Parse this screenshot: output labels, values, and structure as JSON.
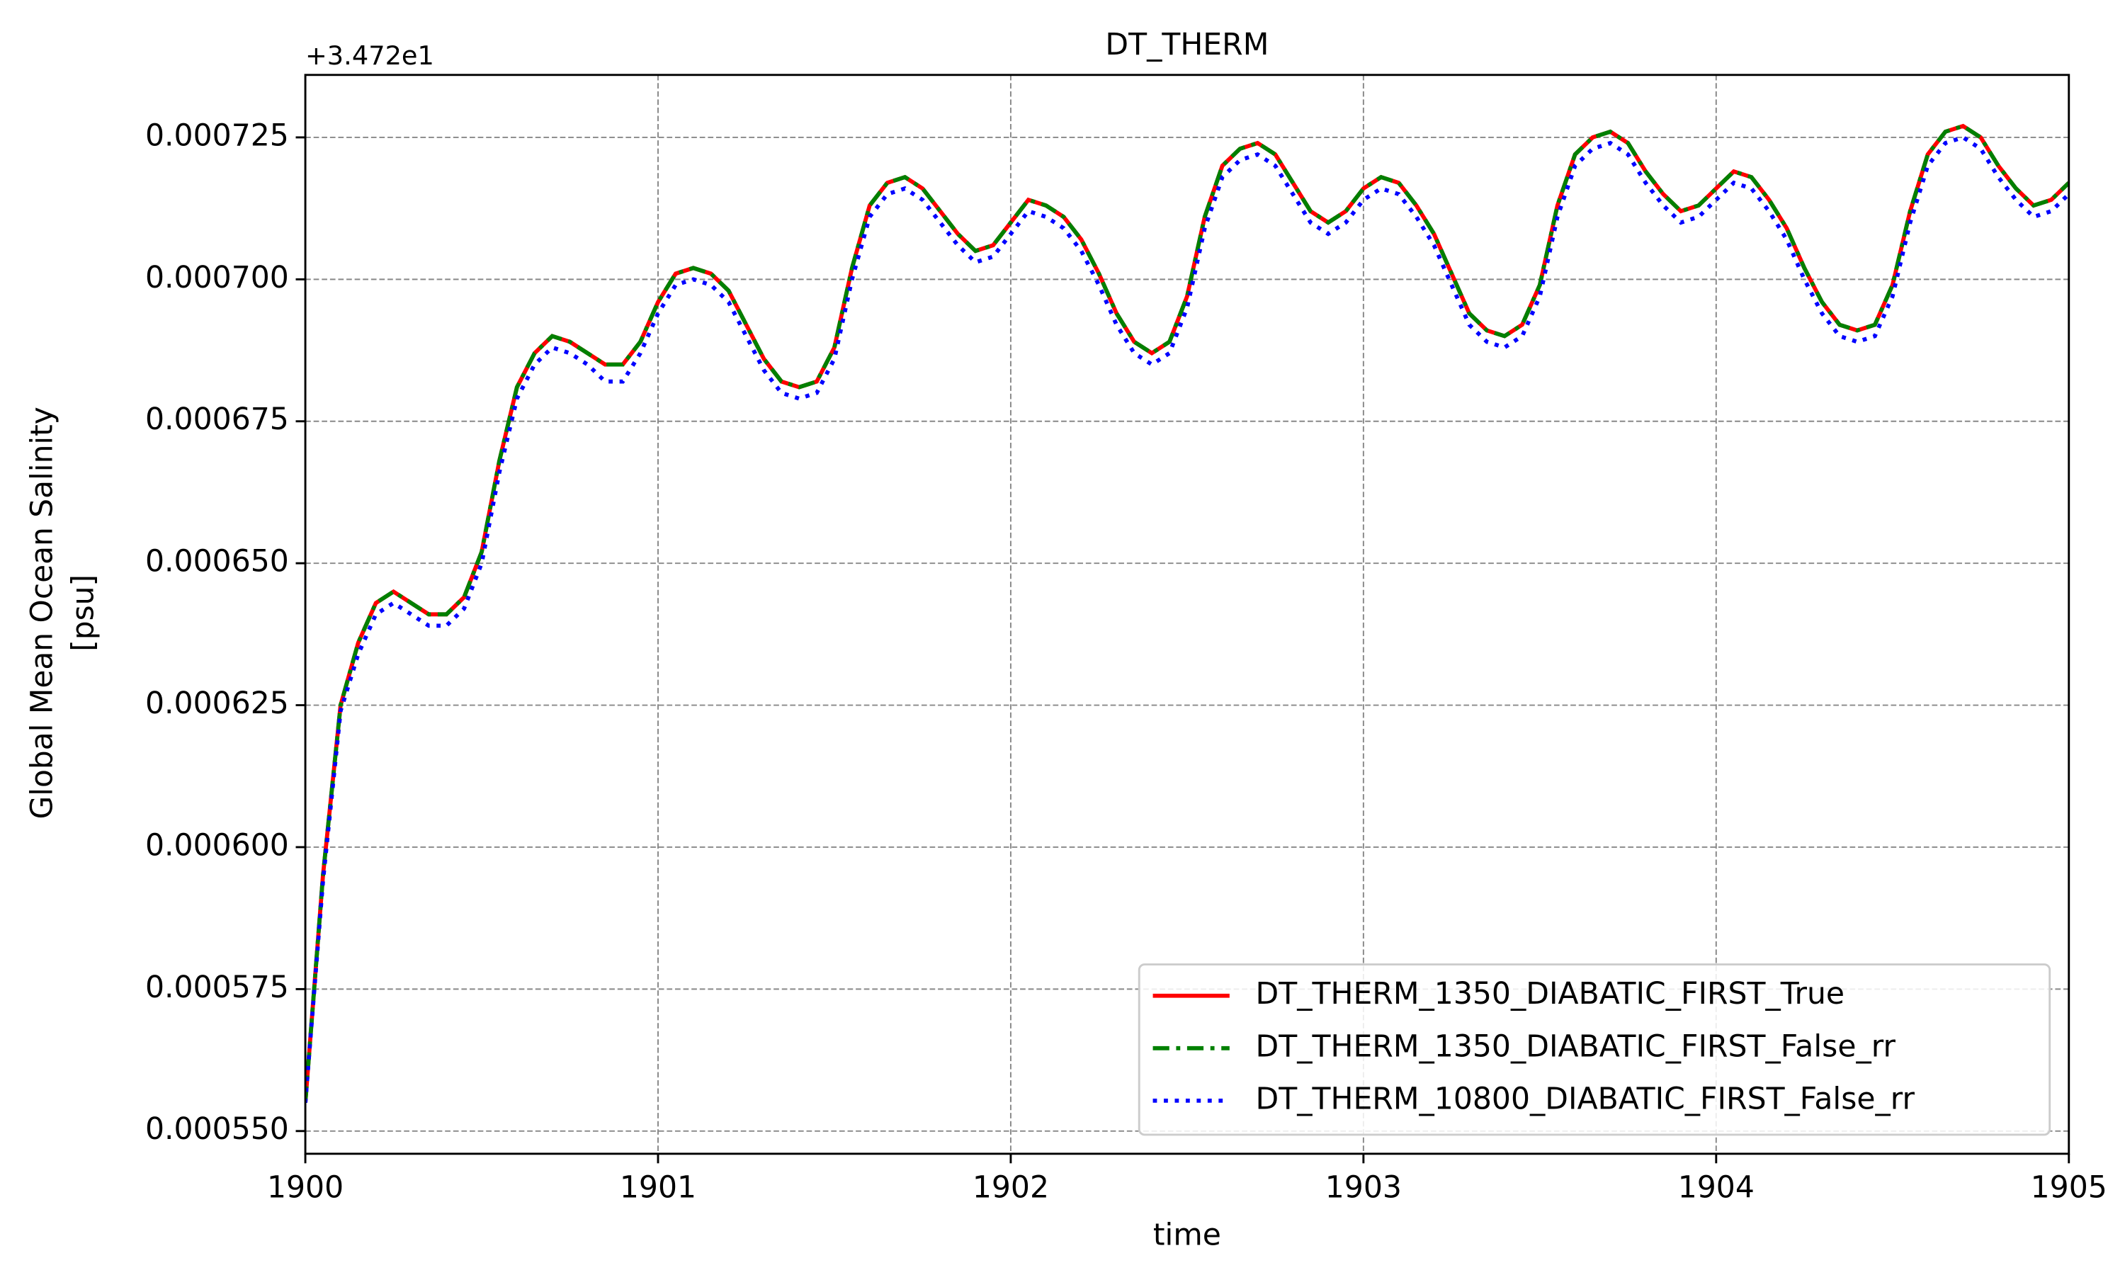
{
  "chart_data": {
    "type": "line",
    "title": "DT_THERM",
    "xlabel": "time",
    "ylabel": [
      "Global Mean Ocean Salinity",
      "[psu]"
    ],
    "y_offset_label": "+3.472e1",
    "x": [
      1900,
      1900.05,
      1900.1,
      1900.15,
      1900.2,
      1900.25,
      1900.3,
      1900.35,
      1900.4,
      1900.45,
      1900.5,
      1900.55,
      1900.6,
      1900.65,
      1900.7,
      1900.75,
      1900.8,
      1900.85,
      1900.9,
      1900.95,
      1901,
      1901.05,
      1901.1,
      1901.15,
      1901.2,
      1901.25,
      1901.3,
      1901.35,
      1901.4,
      1901.45,
      1901.5,
      1901.55,
      1901.6,
      1901.65,
      1901.7,
      1901.75,
      1901.8,
      1901.85,
      1901.9,
      1901.95,
      1902,
      1902.05,
      1902.1,
      1902.15,
      1902.2,
      1902.25,
      1902.3,
      1902.35,
      1902.4,
      1902.45,
      1902.5,
      1902.55,
      1902.6,
      1902.65,
      1902.7,
      1902.75,
      1902.8,
      1902.85,
      1902.9,
      1902.95,
      1903,
      1903.05,
      1903.1,
      1903.15,
      1903.2,
      1903.25,
      1903.3,
      1903.35,
      1903.4,
      1903.45,
      1903.5,
      1903.55,
      1903.6,
      1903.65,
      1903.7,
      1903.75,
      1903.8,
      1903.85,
      1903.9,
      1903.95,
      1904,
      1904.05,
      1904.1,
      1904.15,
      1904.2,
      1904.25,
      1904.3,
      1904.35,
      1904.4,
      1904.45,
      1904.5,
      1904.55,
      1904.6,
      1904.65,
      1904.7,
      1904.75,
      1904.8,
      1904.85,
      1904.9,
      1904.95,
      1905
    ],
    "series": [
      {
        "name": "DT_THERM_1350_DIABATIC_FIRST_True",
        "color": "#ff0000",
        "style": "solid",
        "values": [
          0.000555,
          0.000595,
          0.000625,
          0.000636,
          0.000643,
          0.000645,
          0.000643,
          0.000641,
          0.000641,
          0.000644,
          0.000652,
          0.000668,
          0.000681,
          0.000687,
          0.00069,
          0.000689,
          0.000687,
          0.000685,
          0.000685,
          0.000689,
          0.000696,
          0.000701,
          0.000702,
          0.000701,
          0.000698,
          0.000692,
          0.000686,
          0.000682,
          0.000681,
          0.000682,
          0.000688,
          0.000702,
          0.000713,
          0.000717,
          0.000718,
          0.000716,
          0.000712,
          0.000708,
          0.000705,
          0.000706,
          0.00071,
          0.000714,
          0.000713,
          0.000711,
          0.000707,
          0.000701,
          0.000694,
          0.000689,
          0.000687,
          0.000689,
          0.000697,
          0.000711,
          0.00072,
          0.000723,
          0.000724,
          0.000722,
          0.000717,
          0.000712,
          0.00071,
          0.000712,
          0.000716,
          0.000718,
          0.000717,
          0.000713,
          0.000708,
          0.000701,
          0.000694,
          0.000691,
          0.00069,
          0.000692,
          0.000699,
          0.000713,
          0.000722,
          0.000725,
          0.000726,
          0.000724,
          0.000719,
          0.000715,
          0.000712,
          0.000713,
          0.000716,
          0.000719,
          0.000718,
          0.000714,
          0.000709,
          0.000702,
          0.000696,
          0.000692,
          0.000691,
          0.000692,
          0.000699,
          0.000712,
          0.000722,
          0.000726,
          0.000727,
          0.000725,
          0.00072,
          0.000716,
          0.000713,
          0.000714,
          0.000717
        ]
      },
      {
        "name": "DT_THERM_1350_DIABATIC_FIRST_False_rr",
        "color": "#008000",
        "style": "dashdot",
        "values": [
          0.000555,
          0.000595,
          0.000625,
          0.000636,
          0.000643,
          0.000645,
          0.000643,
          0.000641,
          0.000641,
          0.000644,
          0.000652,
          0.000668,
          0.000681,
          0.000687,
          0.00069,
          0.000689,
          0.000687,
          0.000685,
          0.000685,
          0.000689,
          0.000696,
          0.000701,
          0.000702,
          0.000701,
          0.000698,
          0.000692,
          0.000686,
          0.000682,
          0.000681,
          0.000682,
          0.000688,
          0.000702,
          0.000713,
          0.000717,
          0.000718,
          0.000716,
          0.000712,
          0.000708,
          0.000705,
          0.000706,
          0.00071,
          0.000714,
          0.000713,
          0.000711,
          0.000707,
          0.000701,
          0.000694,
          0.000689,
          0.000687,
          0.000689,
          0.000697,
          0.000711,
          0.00072,
          0.000723,
          0.000724,
          0.000722,
          0.000717,
          0.000712,
          0.00071,
          0.000712,
          0.000716,
          0.000718,
          0.000717,
          0.000713,
          0.000708,
          0.000701,
          0.000694,
          0.000691,
          0.00069,
          0.000692,
          0.000699,
          0.000713,
          0.000722,
          0.000725,
          0.000726,
          0.000724,
          0.000719,
          0.000715,
          0.000712,
          0.000713,
          0.000716,
          0.000719,
          0.000718,
          0.000714,
          0.000709,
          0.000702,
          0.000696,
          0.000692,
          0.000691,
          0.000692,
          0.000699,
          0.000712,
          0.000722,
          0.000726,
          0.000727,
          0.000725,
          0.00072,
          0.000716,
          0.000713,
          0.000714,
          0.000717
        ]
      },
      {
        "name": "DT_THERM_10800_DIABATIC_FIRST_False_rr",
        "color": "#0000ff",
        "style": "dotted",
        "values": [
          0.000555,
          0.000594,
          0.000624,
          0.000634,
          0.000641,
          0.000643,
          0.000641,
          0.000639,
          0.000639,
          0.000642,
          0.00065,
          0.000666,
          0.000679,
          0.000685,
          0.000688,
          0.000687,
          0.000685,
          0.000682,
          0.000682,
          0.000687,
          0.000694,
          0.000699,
          0.0007,
          0.000699,
          0.000696,
          0.00069,
          0.000684,
          0.00068,
          0.000679,
          0.00068,
          0.000686,
          0.0007,
          0.000711,
          0.000715,
          0.000716,
          0.000714,
          0.00071,
          0.000706,
          0.000703,
          0.000704,
          0.000708,
          0.000712,
          0.000711,
          0.000709,
          0.000705,
          0.000699,
          0.000692,
          0.000687,
          0.000685,
          0.000687,
          0.000695,
          0.000709,
          0.000718,
          0.000721,
          0.000722,
          0.00072,
          0.000715,
          0.00071,
          0.000708,
          0.00071,
          0.000714,
          0.000716,
          0.000715,
          0.000711,
          0.000706,
          0.000699,
          0.000692,
          0.000689,
          0.000688,
          0.00069,
          0.000697,
          0.000711,
          0.00072,
          0.000723,
          0.000724,
          0.000722,
          0.000717,
          0.000713,
          0.00071,
          0.000711,
          0.000714,
          0.000717,
          0.000716,
          0.000712,
          0.000707,
          0.0007,
          0.000694,
          0.00069,
          0.000689,
          0.00069,
          0.000697,
          0.00071,
          0.00072,
          0.000724,
          0.000725,
          0.000723,
          0.000718,
          0.000714,
          0.000711,
          0.000712,
          0.000715
        ]
      }
    ],
    "xlim": [
      1900,
      1905
    ],
    "xticks": [
      1900,
      1901,
      1902,
      1903,
      1904,
      1905
    ],
    "ylim": [
      0.000546,
      0.000736
    ],
    "yticks": [
      {
        "value": 0.00055,
        "label": "0.000550"
      },
      0.000575,
      {
        "value": 0.0006,
        "label": "0.000600"
      },
      0.000625,
      {
        "value": 0.00065,
        "label": "0.000650"
      },
      0.000675,
      {
        "value": 0.0007,
        "label": "0.000700"
      },
      0.000725
    ],
    "grid": true,
    "legend": "lower right"
  }
}
